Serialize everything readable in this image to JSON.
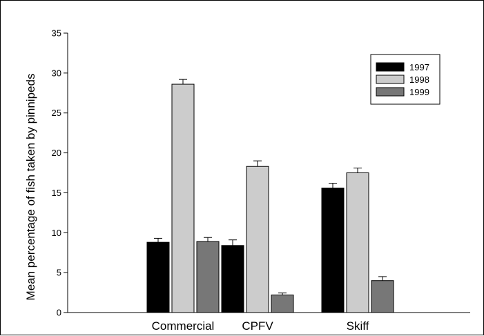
{
  "chart_data": {
    "type": "bar",
    "title": "",
    "xlabel": "",
    "ylabel": "Mean percentage of fish taken by pinnipeds",
    "ylim": [
      0,
      35
    ],
    "yticks": [
      0,
      5,
      10,
      15,
      20,
      25,
      30,
      35
    ],
    "categories": [
      "Commercial",
      "CPFV",
      "Skiff"
    ],
    "series": [
      {
        "name": "1997",
        "values": [
          8.8,
          8.4,
          15.6
        ],
        "errors": [
          0.5,
          0.7,
          0.6
        ],
        "color": "#000000"
      },
      {
        "name": "1998",
        "values": [
          28.6,
          18.3,
          17.5
        ],
        "errors": [
          0.6,
          0.7,
          0.6
        ],
        "color": "#cccccc"
      },
      {
        "name": "1999",
        "values": [
          8.9,
          2.2,
          4.0
        ],
        "errors": [
          0.5,
          0.25,
          0.5
        ],
        "color": "#777777"
      }
    ],
    "legend": {
      "position": "top-right"
    },
    "grid": false
  }
}
